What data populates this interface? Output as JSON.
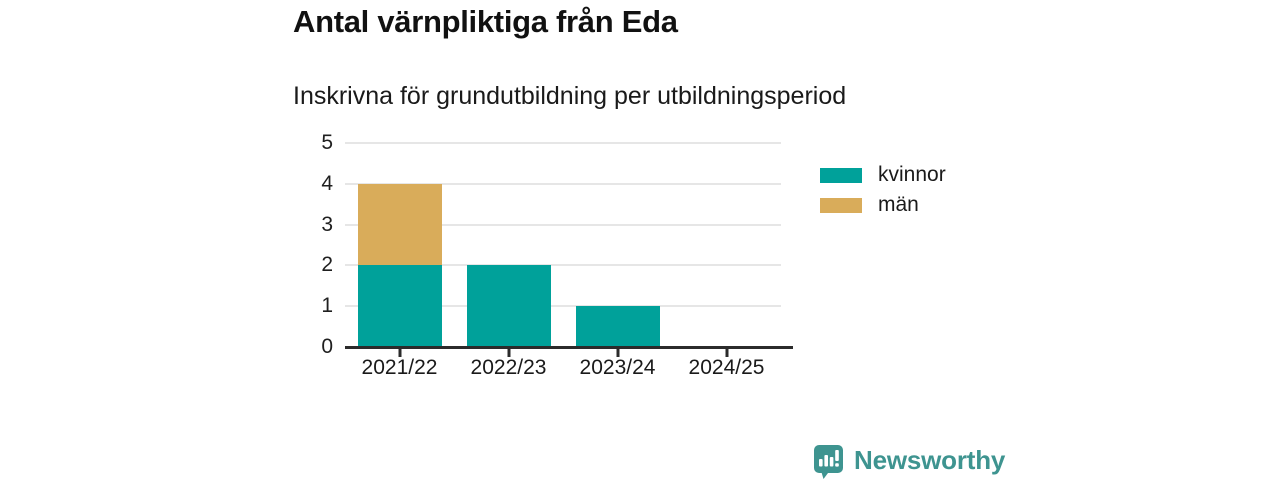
{
  "header": {
    "title": "Antal värnpliktiga från Eda",
    "subtitle": "Inskrivna för grundutbildning per utbildningsperiod"
  },
  "chart_data": {
    "type": "bar",
    "stacked": true,
    "title": "Antal värnpliktiga från Eda",
    "subtitle": "Inskrivna för grundutbildning per utbildningsperiod",
    "categories": [
      "2021/22",
      "2022/23",
      "2023/24",
      "2024/25"
    ],
    "series": [
      {
        "name": "kvinnor",
        "color": "#00A19A",
        "values": [
          2,
          2,
          1,
          0
        ]
      },
      {
        "name": "män",
        "color": "#D9AC5A",
        "values": [
          2,
          0,
          0,
          0
        ]
      }
    ],
    "xlabel": "",
    "ylabel": "",
    "ylim": [
      0,
      5
    ],
    "yticks": [
      0,
      1,
      2,
      3,
      4,
      5
    ],
    "grid": true,
    "legend_position": "right"
  },
  "legend": {
    "items": [
      {
        "label": "kvinnor",
        "color": "#00A19A"
      },
      {
        "label": "män",
        "color": "#D9AC5A"
      }
    ]
  },
  "footer": {
    "brand": "Newsworthy",
    "brand_color": "#3E9490",
    "logo_icon": "newsworthy-speech-bubble-chart-icon"
  },
  "colors": {
    "background": "#FFFFFF",
    "text": "#1A1A1A",
    "axis": "#2B2B2B",
    "gridline": "#E6E6E6"
  }
}
